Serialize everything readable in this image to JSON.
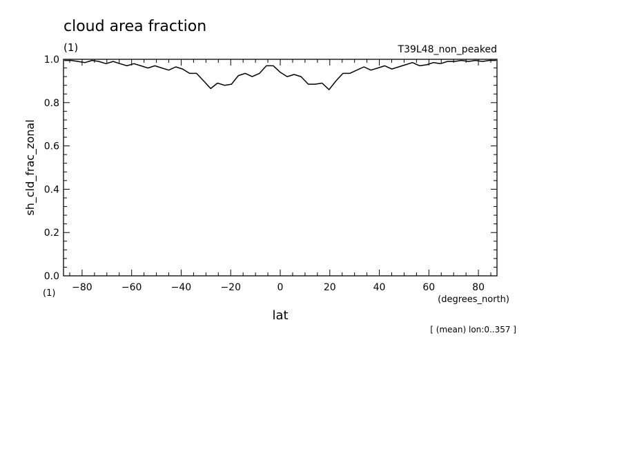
{
  "chart_data": {
    "type": "line",
    "title": "cloud area fraction",
    "units_label": "(1)",
    "experiment": "T39L48_non_peaked",
    "xlabel": "lat",
    "x_units": "(degrees_north)",
    "ylabel": "sh_cld_frac_zonal",
    "y_units": "(1)",
    "footnote": "[ (mean) lon:0..357 ]",
    "xlim": [
      -87.5,
      87.5
    ],
    "ylim": [
      0,
      1
    ],
    "x_ticks": [
      -80,
      -60,
      -40,
      -20,
      0,
      20,
      40,
      60,
      80
    ],
    "x_tick_labels": [
      "−80",
      "−60",
      "−40",
      "−20",
      "0",
      "20",
      "40",
      "60",
      "80"
    ],
    "y_ticks": [
      0,
      0.2,
      0.4,
      0.6,
      0.8,
      1.0
    ],
    "y_tick_labels": [
      "0.0",
      "0.2",
      "0.4",
      "0.6",
      "0.8",
      "1.0"
    ],
    "grid": false,
    "series": [
      {
        "x": [
          -87.2,
          -84.4,
          -81.6,
          -78.8,
          -76.0,
          -73.2,
          -70.3,
          -67.5,
          -64.7,
          -61.9,
          -59.1,
          -56.3,
          -53.4,
          -50.6,
          -47.8,
          -45.0,
          -42.2,
          -39.4,
          -36.6,
          -33.8,
          -30.9,
          -28.1,
          -25.3,
          -22.5,
          -19.7,
          -16.9,
          -14.1,
          -11.3,
          -8.4,
          -5.6,
          -2.8,
          0.0,
          2.8,
          5.6,
          8.4,
          11.3,
          14.1,
          16.9,
          19.7,
          22.5,
          25.3,
          28.1,
          30.9,
          33.8,
          36.6,
          39.4,
          42.2,
          45.0,
          47.8,
          50.6,
          53.4,
          56.3,
          59.1,
          61.9,
          64.7,
          67.5,
          70.3,
          73.2,
          76.0,
          78.8,
          81.6,
          84.4,
          87.2
        ],
        "values": [
          0.995,
          0.995,
          0.99,
          0.985,
          0.995,
          0.99,
          0.98,
          0.99,
          0.98,
          0.97,
          0.98,
          0.97,
          0.96,
          0.97,
          0.96,
          0.95,
          0.965,
          0.955,
          0.935,
          0.935,
          0.9,
          0.865,
          0.89,
          0.88,
          0.885,
          0.925,
          0.935,
          0.92,
          0.935,
          0.97,
          0.97,
          0.94,
          0.92,
          0.93,
          0.92,
          0.885,
          0.885,
          0.89,
          0.86,
          0.9,
          0.935,
          0.935,
          0.95,
          0.965,
          0.95,
          0.96,
          0.97,
          0.955,
          0.965,
          0.975,
          0.985,
          0.97,
          0.975,
          0.985,
          0.98,
          0.99,
          0.99,
          0.995,
          0.99,
          0.995,
          0.99,
          0.995,
          0.995
        ]
      }
    ]
  }
}
